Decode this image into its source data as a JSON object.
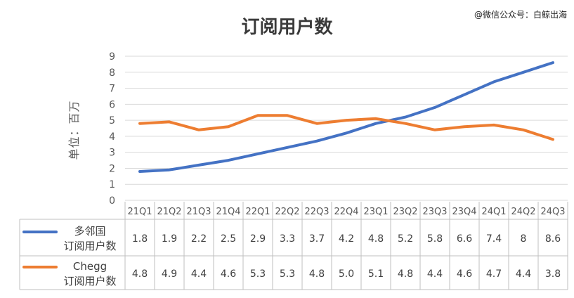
{
  "watermark": "@微信公众号：白鲸出海",
  "chart_data": {
    "type": "line",
    "title": "订阅用户数",
    "ylabel": "单位：百万",
    "ylim": [
      0,
      9
    ],
    "yticks": [
      0,
      1,
      2,
      3,
      4,
      5,
      6,
      7,
      8,
      9
    ],
    "grid": true,
    "legend": "data table (bottom)",
    "categories": [
      "21Q1",
      "21Q2",
      "21Q3",
      "21Q4",
      "22Q1",
      "22Q2",
      "22Q3",
      "22Q4",
      "23Q1",
      "23Q2",
      "23Q3",
      "23Q4",
      "24Q1",
      "24Q2",
      "24Q3"
    ],
    "series": [
      {
        "name": "多邻国订阅用户数",
        "label_lines": [
          "多邻国",
          "订阅用户数"
        ],
        "color": "#4472C4",
        "values": [
          1.8,
          1.9,
          2.2,
          2.5,
          2.9,
          3.3,
          3.7,
          4.2,
          4.8,
          5.2,
          5.8,
          6.6,
          7.4,
          8,
          8.6
        ],
        "labels": [
          "1.8",
          "1.9",
          "2.2",
          "2.5",
          "2.9",
          "3.3",
          "3.7",
          "4.2",
          "4.8",
          "5.2",
          "5.8",
          "6.6",
          "7.4",
          "8",
          "8.6"
        ]
      },
      {
        "name": "Chegg订阅用户数",
        "label_lines": [
          "Chegg",
          "订阅用户数"
        ],
        "color": "#ED7D31",
        "values": [
          4.8,
          4.9,
          4.4,
          4.6,
          5.3,
          5.3,
          4.8,
          5.0,
          5.1,
          4.8,
          4.4,
          4.6,
          4.7,
          4.4,
          3.8
        ],
        "labels": [
          "4.8",
          "4.9",
          "4.4",
          "4.6",
          "5.3",
          "5.3",
          "4.8",
          "5.0",
          "5.1",
          "4.8",
          "4.4",
          "4.6",
          "4.7",
          "4.4",
          "3.8"
        ]
      }
    ]
  }
}
